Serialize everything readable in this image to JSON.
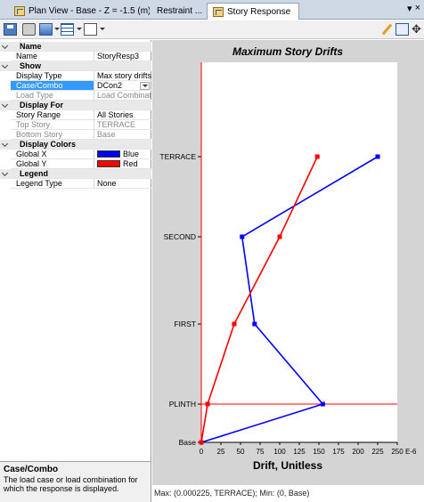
{
  "tabs": [
    {
      "label": "Plan View - Base - Z = -1.5 (m)"
    },
    {
      "label": "Restraint ..."
    },
    {
      "label": "Story Response"
    }
  ],
  "window_buttons": {
    "dropdown": "▾",
    "close": "×"
  },
  "properties": {
    "rows": [
      {
        "type": "cat",
        "key": "Name"
      },
      {
        "type": "prop",
        "key": "Name",
        "value": "StoryResp3"
      },
      {
        "type": "cat",
        "key": "Show"
      },
      {
        "type": "prop",
        "key": "Display Type",
        "value": "Max story drifts"
      },
      {
        "type": "prop",
        "key": "Case/Combo",
        "value": "DCon2",
        "selected": true,
        "dropdown": true
      },
      {
        "type": "prop",
        "key": "Load Type",
        "value": "Load Combination",
        "grey": true
      },
      {
        "type": "cat",
        "key": "Display For"
      },
      {
        "type": "prop",
        "key": "Story Range",
        "value": "All Stories"
      },
      {
        "type": "prop",
        "key": "Top Story",
        "value": "TERRACE",
        "grey": true
      },
      {
        "type": "prop",
        "key": "Bottom Story",
        "value": "Base",
        "grey": true
      },
      {
        "type": "cat",
        "key": "Display Colors"
      },
      {
        "type": "prop",
        "key": "Global X",
        "value": "Blue",
        "swatch": "#0000ff"
      },
      {
        "type": "prop",
        "key": "Global Y",
        "value": "Red",
        "swatch": "#ff0000"
      },
      {
        "type": "cat",
        "key": "Legend"
      },
      {
        "type": "prop",
        "key": "Legend Type",
        "value": "None"
      }
    ]
  },
  "description": {
    "title": "Case/Combo",
    "text": "The load case or load combination for which the response is displayed."
  },
  "status_text": "Max: (0.000225, TERRACE);  Min: (0, Base)",
  "chart_data": {
    "type": "line",
    "title": "Maximum Story Drifts",
    "xlabel": "Drift, Unitless",
    "xunit_label": "E-6",
    "xlim": [
      0,
      250
    ],
    "xticks": [
      0,
      25,
      50,
      75,
      100,
      125,
      150,
      175,
      200,
      225,
      250
    ],
    "stories": [
      "Base",
      "PLINTH",
      "FIRST",
      "SECOND",
      "TERRACE"
    ],
    "series": [
      {
        "color": "#0000ff",
        "points": [
          [
            "Base",
            0
          ],
          [
            "PLINTH",
            155
          ],
          [
            "FIRST",
            68
          ],
          [
            "SECOND",
            52
          ],
          [
            "TERRACE",
            225
          ]
        ]
      },
      {
        "color": "#ff0000",
        "points": [
          [
            "Base",
            0
          ],
          [
            "PLINTH",
            8
          ],
          [
            "FIRST",
            42
          ],
          [
            "SECOND",
            100
          ],
          [
            "TERRACE",
            148
          ]
        ]
      }
    ],
    "story_line_color": "#ff0000"
  }
}
